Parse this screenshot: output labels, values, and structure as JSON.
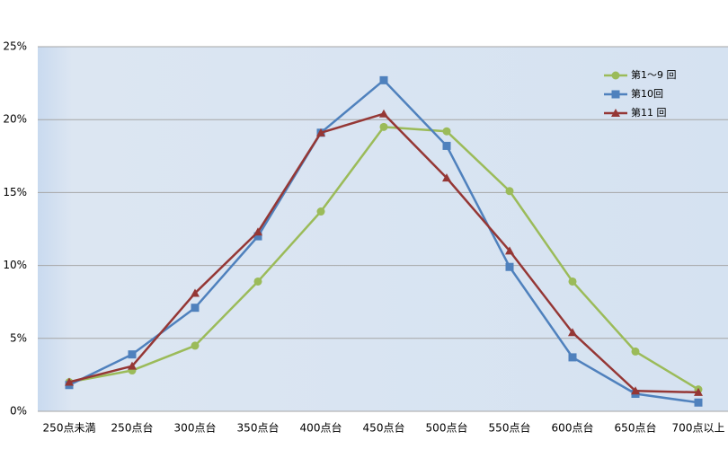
{
  "chart_data": {
    "type": "line",
    "categories": [
      "250点未満",
      "250点台",
      "300点台",
      "350点台",
      "400点台",
      "450点台",
      "500点台",
      "550点台",
      "600点台",
      "650点台",
      "700点以上"
    ],
    "series": [
      {
        "name": "第1〜9 回",
        "color": "#9bbb59",
        "marker": "circle",
        "values": [
          2.0,
          2.8,
          4.5,
          8.9,
          13.7,
          19.5,
          19.2,
          15.1,
          8.9,
          4.1,
          1.5
        ]
      },
      {
        "name": "第10回",
        "color": "#4f81bd",
        "marker": "square",
        "values": [
          1.8,
          3.9,
          7.1,
          12.0,
          19.1,
          22.7,
          18.2,
          9.9,
          3.7,
          1.2,
          0.6
        ]
      },
      {
        "name": "第11 回",
        "color": "#953735",
        "marker": "triangle",
        "values": [
          2.0,
          3.1,
          8.1,
          12.3,
          19.1,
          20.4,
          16.0,
          11.0,
          5.4,
          1.4,
          1.3
        ]
      }
    ],
    "ylim": [
      0,
      25
    ],
    "yticks": [
      {
        "value": 0,
        "label": "0%"
      },
      {
        "value": 5,
        "label": "5%"
      },
      {
        "value": 10,
        "label": "10%"
      },
      {
        "value": 15,
        "label": "15%"
      },
      {
        "value": 20,
        "label": "20%"
      },
      {
        "value": 25,
        "label": "25%"
      }
    ],
    "grid": true,
    "legend": "top-right"
  }
}
